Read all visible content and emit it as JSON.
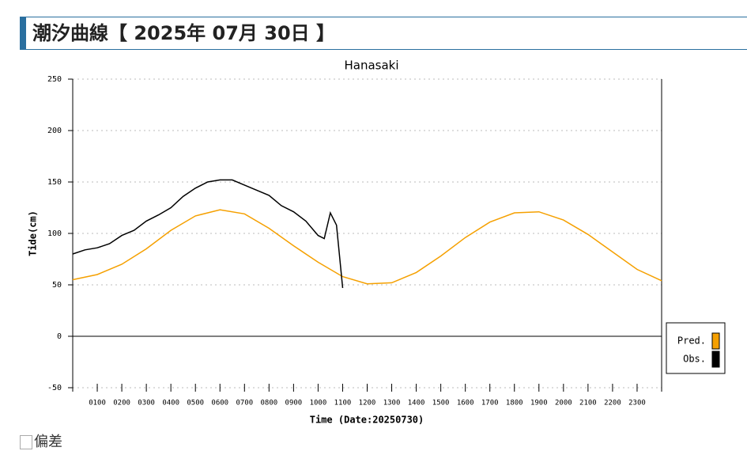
{
  "header": {
    "title": "潮汐曲線【 2025年 07月 30日 】"
  },
  "chart_data": {
    "type": "line",
    "title": "Hanasaki",
    "y_label": "Tide(cm)",
    "x_label": "Time (Date:20250730)",
    "xlim": [
      0,
      24
    ],
    "ylim": [
      -50,
      250
    ],
    "grid": true,
    "legend": "right",
    "xticks": [
      {
        "value": 1,
        "label": "0100"
      },
      {
        "value": 2,
        "label": "0200"
      },
      {
        "value": 3,
        "label": "0300"
      },
      {
        "value": 4,
        "label": "0400"
      },
      {
        "value": 5,
        "label": "0500"
      },
      {
        "value": 6,
        "label": "0600"
      },
      {
        "value": 7,
        "label": "0700"
      },
      {
        "value": 8,
        "label": "0800"
      },
      {
        "value": 9,
        "label": "0900"
      },
      {
        "value": 10,
        "label": "1000"
      },
      {
        "value": 11,
        "label": "1100"
      },
      {
        "value": 12,
        "label": "1200"
      },
      {
        "value": 13,
        "label": "1300"
      },
      {
        "value": 14,
        "label": "1400"
      },
      {
        "value": 15,
        "label": "1500"
      },
      {
        "value": 16,
        "label": "1600"
      },
      {
        "value": 17,
        "label": "1700"
      },
      {
        "value": 18,
        "label": "1800"
      },
      {
        "value": 19,
        "label": "1900"
      },
      {
        "value": 20,
        "label": "2000"
      },
      {
        "value": 21,
        "label": "2100"
      },
      {
        "value": 22,
        "label": "2200"
      },
      {
        "value": 23,
        "label": "2300"
      }
    ],
    "yticks": [
      -50,
      0,
      50,
      100,
      150,
      200,
      250
    ],
    "series": [
      {
        "name": "Pred.",
        "color": "#f5a000",
        "x": [
          0,
          1,
          2,
          3,
          4,
          5,
          6,
          7,
          8,
          9,
          10,
          11,
          12,
          13,
          14,
          15,
          16,
          17,
          18,
          19,
          20,
          21,
          22,
          23,
          24
        ],
        "values": [
          55,
          60,
          70,
          85,
          103,
          117,
          123,
          119,
          105,
          88,
          72,
          58,
          51,
          52,
          62,
          78,
          96,
          111,
          120,
          121,
          113,
          99,
          82,
          65,
          54
        ]
      },
      {
        "name": "Obs.",
        "color": "#000000",
        "x": [
          0,
          0.5,
          1,
          1.5,
          2,
          2.5,
          3,
          3.5,
          4,
          4.5,
          5,
          5.5,
          6,
          6.5,
          7,
          7.5,
          8,
          8.5,
          9,
          9.5,
          10,
          10.25,
          10.5,
          10.75,
          11
        ],
        "values": [
          80,
          84,
          86,
          90,
          98,
          103,
          112,
          118,
          125,
          136,
          144,
          150,
          152,
          152,
          147,
          142,
          137,
          127,
          121,
          112,
          98,
          95,
          120,
          108,
          47
        ]
      }
    ]
  },
  "footer": {
    "image_alt": "偏差"
  }
}
